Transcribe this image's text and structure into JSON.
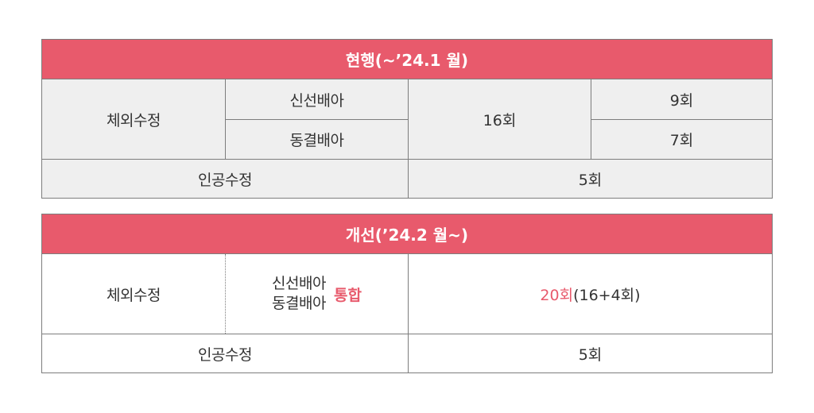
{
  "current": {
    "title": "현행(~’24.1 월)",
    "row1_label": "체외수정",
    "fresh_label": "신선배아",
    "frozen_label": "동결배아",
    "total": "16회",
    "fresh_count": "9회",
    "frozen_count": "7회",
    "ai_label": "인공수정",
    "ai_count": "5회"
  },
  "improved": {
    "title": "개선(’24.2 월~)",
    "row1_label": "체외수정",
    "fresh_label": "신선배아",
    "frozen_label": "동결배아",
    "merge_label": "통합",
    "total_highlight": "20회",
    "total_detail": "(16+4회)",
    "ai_label": "인공수정",
    "ai_count": "5회"
  },
  "colors": {
    "header_bg": "#e85a6c",
    "accent_text": "#e85a6c",
    "cell_gray": "#efefef",
    "border": "#7d7d7d"
  }
}
